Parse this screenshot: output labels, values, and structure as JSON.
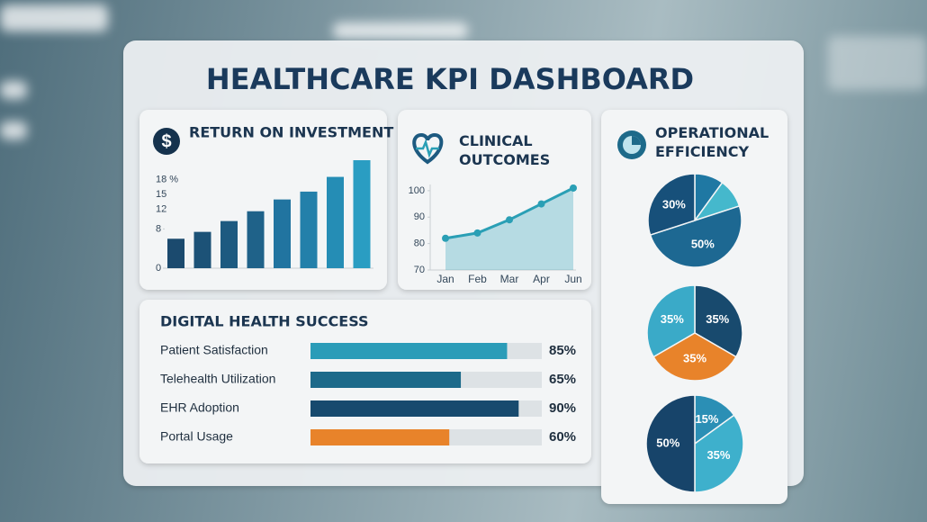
{
  "title": "HEALTHCARE KPI DASHBOARD",
  "chart_data": [
    {
      "type": "bar",
      "title": "RETURN ON INVESTMENT",
      "icon": "$",
      "values": [
        6,
        7.4,
        9.6,
        11.6,
        14,
        15.6,
        18.6,
        22
      ],
      "colors": [
        "#1b4a6e",
        "#1c5277",
        "#1d5a80",
        "#1f6289",
        "#2174a0",
        "#2380aa",
        "#258db5",
        "#2a9dc2"
      ],
      "ylim": [
        0,
        22
      ],
      "yticks": [
        0,
        8,
        12,
        15,
        {
          "value": 18,
          "label": "18 %"
        }
      ]
    },
    {
      "type": "line",
      "title": "CLINICAL OUTCOMES",
      "categories": [
        "Jan",
        "Feb",
        "Mar",
        "Apr",
        "Jun"
      ],
      "values": [
        82,
        84,
        89,
        95,
        101
      ],
      "color": "#2a9fb5",
      "ylim": [
        70,
        102
      ],
      "yticks": [
        70,
        80,
        90,
        100
      ]
    },
    {
      "type": "hbar",
      "title": "DIGITAL HEALTH SUCCESS",
      "categories": [
        "Patient Satisfaction",
        "Telehealth Utilization",
        "EHR Adoption",
        "Portal Usage"
      ],
      "values": [
        85,
        65,
        90,
        60
      ],
      "value_labels": [
        "85%",
        "65%",
        "90%",
        "60%"
      ],
      "colors": [
        "#2a9cb8",
        "#1d6a8a",
        "#174a6e",
        "#e8832a"
      ],
      "xlim": [
        0,
        100
      ]
    },
    {
      "type": "pie",
      "title": "OPERATIONAL EFFICIENCY",
      "pies": [
        {
          "values": [
            10,
            10,
            50,
            30
          ],
          "value_labels": [
            null,
            null,
            "50%",
            "30%"
          ],
          "colors": [
            "#1f78a3",
            "#45b8cc",
            "#1d6892",
            "#17507a"
          ]
        },
        {
          "values": [
            35,
            35,
            35
          ],
          "value_labels": [
            "35%",
            "35%",
            "35%"
          ],
          "colors": [
            "#184a6e",
            "#e8832a",
            "#3aaac8"
          ]
        },
        {
          "values": [
            15,
            35,
            50
          ],
          "value_labels": [
            "15%",
            "35%",
            "50%"
          ],
          "colors": [
            "#2b8fb5",
            "#3eb0cc",
            "#17446a"
          ]
        }
      ]
    }
  ]
}
